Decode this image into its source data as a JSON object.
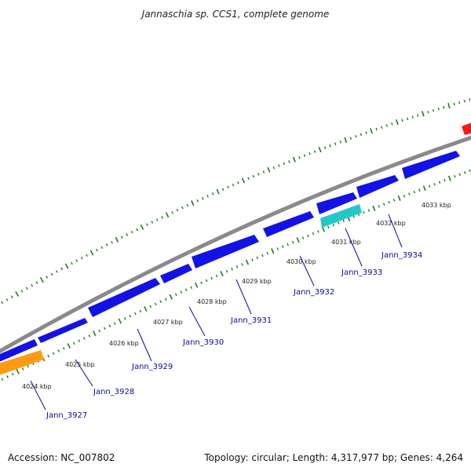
{
  "title": "Jannaschia sp. CCS1, complete genome",
  "footer": {
    "accession": "Accession: NC_007802",
    "topology": "Topology: circular; Length: 4,317,977 bp; Genes: 4,264"
  },
  "colors": {
    "backbone": "#8a8a8a",
    "cds": "#1212e6",
    "cds_cyan": "#22c8c8",
    "orange": "#ff9a14",
    "red": "#ff1414",
    "ticks": "#1f7a1f",
    "label": "#0a0a9c"
  },
  "kbp_labels": [
    "4024 kbp",
    "4025 kbp",
    "4026 kbp",
    "4027 kbp",
    "4028 kbp",
    "4029 kbp",
    "4030 kbp",
    "4031 kbp",
    "4032 kbp",
    "4033 kbp"
  ],
  "gene_labels": [
    "Jann_3927",
    "Jann_3928",
    "Jann_3929",
    "Jann_3930",
    "Jann_3931",
    "Jann_3932",
    "Jann_3933",
    "Jann_3934"
  ]
}
